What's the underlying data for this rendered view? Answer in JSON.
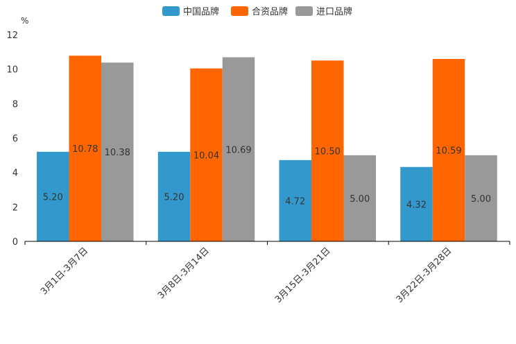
{
  "chart_data": {
    "type": "bar",
    "unit_label": "%",
    "categories": [
      "3月1日-3月7日",
      "3月8日-3月14日",
      "3月15日-3月21日",
      "3月22日-3月28日"
    ],
    "series": [
      {
        "name": "中国品牌",
        "color": "#3399CC",
        "values": [
          5.2,
          5.2,
          4.72,
          4.32
        ],
        "labels": [
          "5.20",
          "5.20",
          "4.72",
          "4.32"
        ]
      },
      {
        "name": "合资品牌",
        "color": "#FF6600",
        "values": [
          10.78,
          10.04,
          10.5,
          10.59
        ],
        "labels": [
          "10.78",
          "10.04",
          "10.50",
          "10.59"
        ]
      },
      {
        "name": "进口品牌",
        "color": "#999999",
        "values": [
          10.38,
          10.69,
          5.0,
          5.0
        ],
        "labels": [
          "10.38",
          "10.69",
          "5.00",
          "5.00"
        ]
      }
    ],
    "y_ticks": [
      0,
      2,
      4,
      6,
      8,
      10,
      12
    ],
    "ylim": [
      0,
      12
    ],
    "legend_position": "top-center",
    "grid": false
  }
}
